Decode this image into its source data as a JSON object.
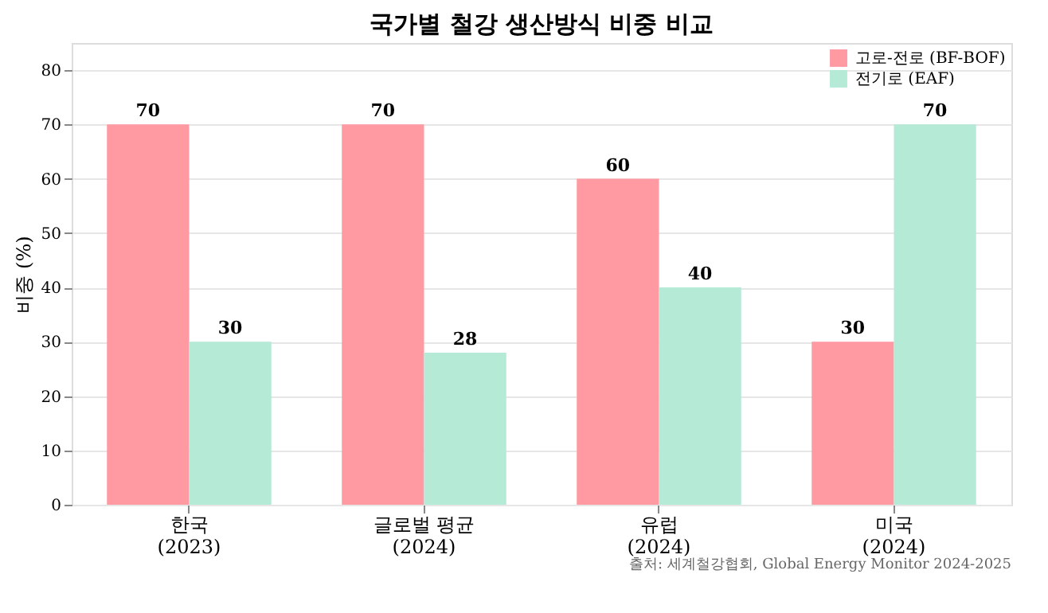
{
  "chart_data": {
    "type": "bar",
    "title": "국가별 철강 생산방식 비중 비교",
    "ylabel": "비중 (%)",
    "categories": [
      "한국\n(2023)",
      "글로벌 평균\n(2024)",
      "유럽\n(2024)",
      "미국\n(2024)"
    ],
    "series": [
      {
        "name": "고로-전로 (BF-BOF)",
        "color": "#ff9aa2",
        "values": [
          70,
          70,
          60,
          30
        ]
      },
      {
        "name": "전기로 (EAF)",
        "color": "#b5ead7",
        "values": [
          30,
          28,
          40,
          70
        ]
      }
    ],
    "ylim": [
      0,
      85
    ],
    "yticks": [
      0,
      10,
      20,
      30,
      40,
      50,
      60,
      70,
      80
    ],
    "grid": "y",
    "legend": "top right",
    "data_labels": true,
    "annotations": [
      "출처: 세계철강협회, Global Energy Monitor 2024-2025"
    ]
  }
}
